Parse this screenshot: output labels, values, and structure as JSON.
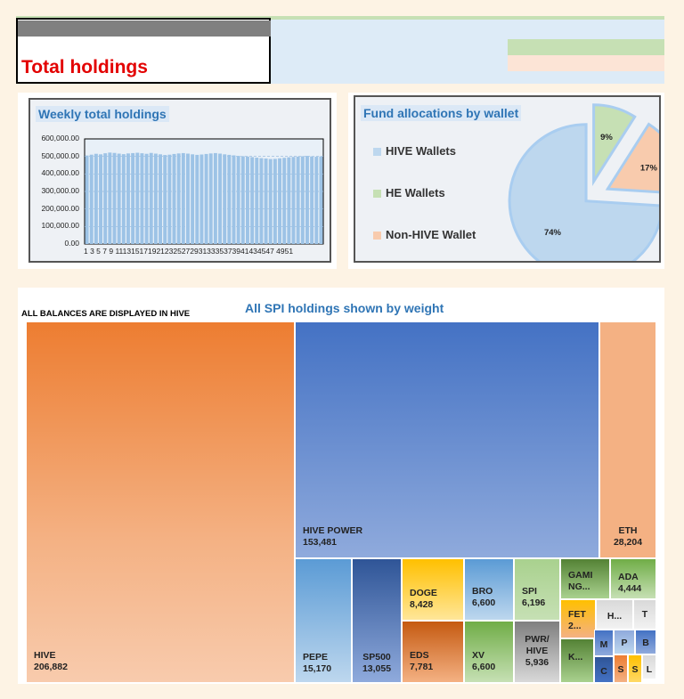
{
  "header": {
    "title": "Total holdings"
  },
  "weekly_chart": {
    "title": "Weekly total holdings",
    "y_ticks": [
      "600,000.00",
      "500,000.00",
      "400,000.00",
      "300,000.00",
      "200,000.00",
      "100,000.00",
      "0.00"
    ],
    "x_tick_text": "1 3 5 7 9 11131517192123252729313335373941434547 4951"
  },
  "allocation_chart": {
    "title": "Fund allocations by wallet",
    "legend": [
      "HIVE Wallets",
      "HE Wallets",
      "Non-HIVE Wallet"
    ],
    "slice_labels": [
      "74%",
      "9%",
      "17%"
    ]
  },
  "treemap": {
    "title": "All SPI holdings shown by weight",
    "note": "ALL BALANCES ARE DISPLAYED IN HIVE"
  },
  "chart_data": [
    {
      "type": "bar",
      "title": "Weekly total holdings",
      "xlabel": "",
      "ylabel": "",
      "ylim": [
        0,
        600000
      ],
      "grid": true,
      "categories": [
        1,
        2,
        3,
        4,
        5,
        6,
        7,
        8,
        9,
        10,
        11,
        12,
        13,
        14,
        15,
        16,
        17,
        18,
        19,
        20,
        21,
        22,
        23,
        24,
        25,
        26,
        27,
        28,
        29,
        30,
        31,
        32,
        33,
        34,
        35,
        36,
        37,
        38,
        39,
        40,
        41,
        42,
        43,
        44,
        45,
        46,
        47,
        48,
        49,
        50,
        51,
        52
      ],
      "values": [
        505000,
        510000,
        515000,
        512000,
        518000,
        522000,
        520000,
        516000,
        513000,
        517000,
        519000,
        521000,
        518000,
        515000,
        520000,
        516000,
        512000,
        508000,
        510000,
        514000,
        517000,
        519000,
        516000,
        512000,
        509000,
        511000,
        514000,
        517000,
        519000,
        516000,
        512000,
        509000,
        506000,
        503000,
        501000,
        499000,
        496000,
        493000,
        490000,
        488000,
        485000,
        486000,
        489000,
        492000,
        495000,
        497000,
        499000,
        501000,
        503000,
        500000,
        498000,
        500000
      ],
      "bar_color": "#9dc3e6"
    },
    {
      "type": "pie",
      "title": "Fund allocations by wallet",
      "legend_position": "left",
      "categories": [
        "HIVE Wallets",
        "HE Wallets",
        "Non-HIVE Wallet"
      ],
      "values": [
        74,
        9,
        17
      ],
      "colors": [
        "#bdd7ee",
        "#c6e0b4",
        "#f8cbad"
      ]
    },
    {
      "type": "treemap",
      "title": "All SPI holdings shown by weight",
      "items": [
        {
          "name": "HIVE",
          "value": 206882
        },
        {
          "name": "HIVE POWER",
          "value": 153481
        },
        {
          "name": "ETH",
          "value": 28204
        },
        {
          "name": "PEPE",
          "value": 15170
        },
        {
          "name": "SP500",
          "value": 13055
        },
        {
          "name": "DOGE",
          "value": 8428
        },
        {
          "name": "EDS",
          "value": 7781
        },
        {
          "name": "BRO",
          "value": 6600
        },
        {
          "name": "XV",
          "value": 6600
        },
        {
          "name": "SPI",
          "value": 6196
        },
        {
          "name": "PWR/HIVE",
          "value": 5936
        },
        {
          "name": "ADA",
          "value": 4444
        }
      ]
    }
  ],
  "tiles": [
    {
      "label": "HIVE",
      "value": "206,882"
    },
    {
      "label": "HIVE POWER",
      "value": "153,481"
    },
    {
      "label": "ETH",
      "value": "28,204"
    },
    {
      "label": "PEPE",
      "value": "15,170"
    },
    {
      "label": "SP500",
      "value": "13,055"
    },
    {
      "label": "DOGE",
      "value": "8,428"
    },
    {
      "label": "EDS",
      "value": "7,781"
    },
    {
      "label": "BRO",
      "value": "6,600"
    },
    {
      "label": "XV",
      "value": "6,600"
    },
    {
      "label": "SPI",
      "value": "6,196"
    },
    {
      "label": "PWR/\nHIVE",
      "value": "5,936"
    },
    {
      "label": "GAMI\nNG...",
      "value": ""
    },
    {
      "label": "ADA",
      "value": "4,444"
    },
    {
      "label": "FET\n2...",
      "value": ""
    },
    {
      "label": "H...",
      "value": ""
    },
    {
      "label": "T",
      "value": ""
    },
    {
      "label": "K...",
      "value": ""
    },
    {
      "label": "M",
      "value": ""
    },
    {
      "label": "P",
      "value": ""
    },
    {
      "label": "B",
      "value": ""
    },
    {
      "label": "C",
      "value": ""
    },
    {
      "label": "S",
      "value": ""
    },
    {
      "label": "S",
      "value": ""
    },
    {
      "label": "L",
      "value": ""
    }
  ],
  "colors": {
    "title_red": "#e30000",
    "chart_title_blue": "#2f75b5",
    "hive_orange": "#ed7d31",
    "hive_power_blue": "#4472c4"
  }
}
